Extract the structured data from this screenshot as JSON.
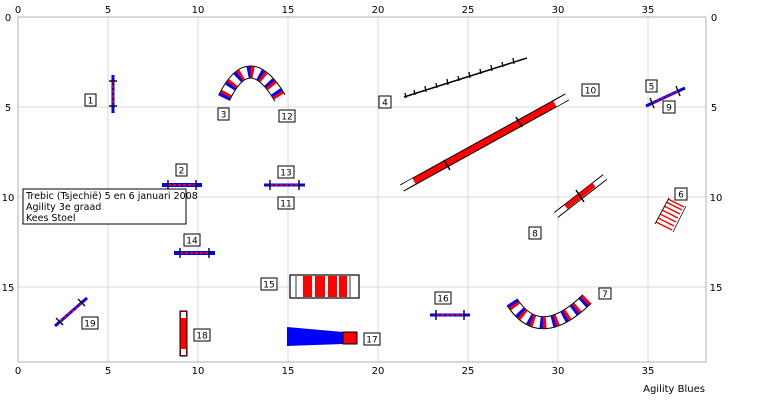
{
  "course": {
    "x_ticks": [
      "0",
      "5",
      "10",
      "15",
      "20",
      "25",
      "30",
      "35"
    ],
    "y_ticks": [
      "0",
      "5",
      "10",
      "15"
    ],
    "info_lines": [
      "Trebic (Tsjechië) 5 en 6 januari 2008",
      "Agility 3e graad",
      "Kees Stoel"
    ],
    "credit": "Agility Blues",
    "numbers": [
      "1",
      "2",
      "3",
      "4",
      "5",
      "6",
      "7",
      "8",
      "9",
      "10",
      "11",
      "12",
      "13",
      "14",
      "15",
      "16",
      "17",
      "18",
      "19"
    ],
    "colors": {
      "red": "#ff0000",
      "blue": "#0000ff",
      "black": "#000000",
      "grid": "#d8d8d8"
    }
  }
}
